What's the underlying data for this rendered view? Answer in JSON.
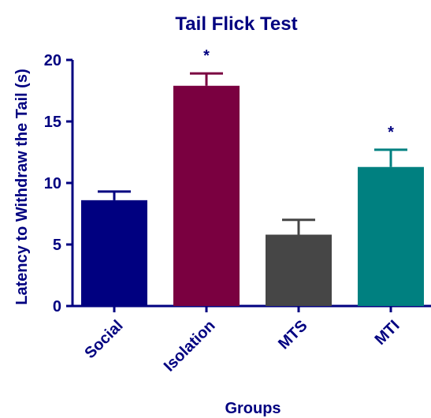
{
  "chart_data": {
    "type": "bar",
    "title": "Tail Flick Test",
    "xlabel": "Groups",
    "ylabel": "Latency to Withdraw the Tail (s)",
    "ylim": [
      0,
      20
    ],
    "yticks": [
      "0",
      "5",
      "10",
      "15",
      "20"
    ],
    "categories": [
      "Social",
      "Isolation",
      "MTS",
      "MTI"
    ],
    "values": [
      8.6,
      17.9,
      5.8,
      11.3
    ],
    "errors": [
      0.7,
      1.0,
      1.2,
      1.4
    ],
    "significance": [
      "",
      "*",
      "",
      "*"
    ],
    "colors": [
      "#000080",
      "#7a0040",
      "#464646",
      "#008080"
    ],
    "grid": false,
    "legend": "none"
  },
  "colors": {
    "text": "#000080",
    "axis": "#000080"
  }
}
